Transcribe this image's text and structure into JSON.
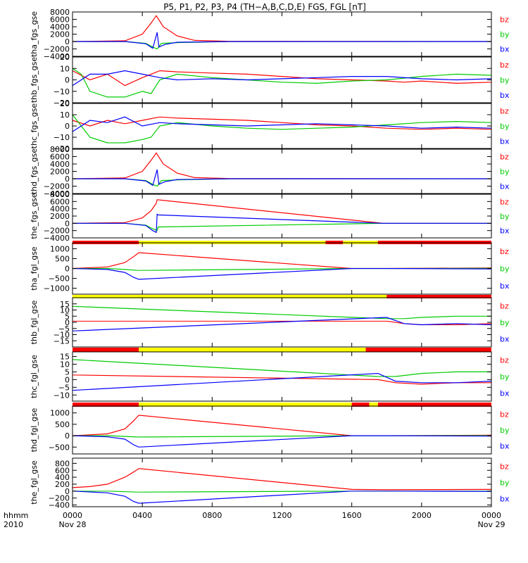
{
  "title": "P5, P1, P2, P3, P4 (TH−A,B,C,D,E) FGS, FGL [nT]",
  "colors": {
    "bx": "#0000ff",
    "by": "#00cc00",
    "bz": "#ff0000",
    "flag_red": "#ff0000",
    "flag_yellow": "#ffff00",
    "text": "#000000"
  },
  "x_axis": {
    "range_hours": [
      0,
      24
    ],
    "ticks": [
      "0000",
      "0400",
      "0800",
      "1200",
      "1600",
      "2000",
      "0000"
    ],
    "tick_hours": [
      0,
      4,
      8,
      12,
      16,
      20,
      24
    ],
    "date_labels": [
      "Nov 28",
      "Nov 29"
    ],
    "corner_labels": [
      "hhmm",
      "2010"
    ]
  },
  "chart_data": [
    {
      "type": "line",
      "ylabel": "tha_fgs_gse",
      "ylim": [
        -4000,
        8000
      ],
      "tick_values": [
        8000,
        6000,
        4000,
        2000,
        0,
        -2000,
        -4000
      ],
      "tick_labels": [
        "8000",
        "6000",
        "4000",
        "2000",
        "0",
        "−2000",
        "−4000"
      ],
      "series": [
        {
          "name": "bz",
          "color": "#ff0000",
          "x": [
            0,
            3,
            4,
            4.5,
            4.8,
            5.2,
            6,
            7,
            9,
            24
          ],
          "y": [
            0,
            200,
            2000,
            5000,
            7000,
            4000,
            1500,
            300,
            50,
            0
          ]
        },
        {
          "name": "by",
          "color": "#00cc00",
          "x": [
            0,
            3,
            4.2,
            4.6,
            4.85,
            5.1,
            6,
            9,
            24
          ],
          "y": [
            0,
            0,
            -500,
            -1500,
            -2000,
            -500,
            -300,
            0,
            0
          ]
        },
        {
          "name": "bx",
          "color": "#0000ff",
          "x": [
            0,
            3,
            4.2,
            4.6,
            4.85,
            4.95,
            5.3,
            6,
            9,
            24
          ],
          "y": [
            0,
            0,
            -600,
            -1800,
            2500,
            -1500,
            -800,
            -200,
            0,
            0
          ]
        }
      ]
    },
    {
      "type": "line",
      "ylabel": "thb_fgs_gse",
      "ylim": [
        -20,
        20
      ],
      "tick_values": [
        20,
        10,
        0,
        -10,
        -20
      ],
      "tick_labels": [
        "20",
        "10",
        "0",
        "−10",
        "−20"
      ],
      "series": [
        {
          "name": "bz",
          "color": "#ff0000",
          "x": [
            0,
            1,
            2,
            3,
            4,
            4.5,
            5,
            6,
            8,
            10,
            12,
            14,
            16,
            18,
            19,
            20,
            22,
            24
          ],
          "y": [
            8,
            0,
            5,
            -5,
            2,
            5,
            8,
            7,
            6,
            5,
            3,
            1,
            0,
            -1,
            -2,
            -1,
            -3,
            -2
          ]
        },
        {
          "name": "by",
          "color": "#00cc00",
          "x": [
            0,
            0.5,
            1,
            2,
            3,
            4,
            4.5,
            5,
            6,
            8,
            10,
            12,
            14,
            16,
            18,
            20,
            22,
            24
          ],
          "y": [
            10,
            5,
            -10,
            -15,
            -15,
            -10,
            -12,
            0,
            5,
            2,
            0,
            -2,
            -3,
            -1,
            0,
            3,
            5,
            4
          ]
        },
        {
          "name": "bx",
          "color": "#0000ff",
          "x": [
            0,
            1,
            2,
            3,
            4,
            5,
            6,
            8,
            10,
            12,
            14,
            16,
            18,
            20,
            22,
            24
          ],
          "y": [
            -5,
            5,
            5,
            8,
            5,
            2,
            0,
            1,
            0,
            1,
            2,
            3,
            3,
            1,
            0,
            1
          ]
        }
      ]
    },
    {
      "type": "line",
      "ylabel": "thc_fgs_gse",
      "ylim": [
        -20,
        20
      ],
      "tick_values": [
        20,
        10,
        0,
        -10,
        -20
      ],
      "tick_labels": [
        "20",
        "10",
        "0",
        "−10",
        "−20"
      ],
      "series": [
        {
          "name": "bz",
          "color": "#ff0000",
          "x": [
            0,
            1,
            2,
            3,
            4,
            5,
            6,
            8,
            10,
            12,
            14,
            16,
            18,
            20,
            22,
            24
          ],
          "y": [
            5,
            0,
            5,
            2,
            5,
            8,
            7,
            6,
            5,
            3,
            1,
            0,
            -2,
            -3,
            -2,
            -3
          ]
        },
        {
          "name": "by",
          "color": "#00cc00",
          "x": [
            0,
            0.5,
            1,
            2,
            3,
            4,
            4.5,
            5,
            6,
            8,
            10,
            12,
            14,
            16,
            18,
            20,
            22,
            24
          ],
          "y": [
            10,
            0,
            -10,
            -15,
            -15,
            -12,
            -10,
            0,
            3,
            0,
            -2,
            -3,
            -2,
            -1,
            1,
            3,
            4,
            3
          ]
        },
        {
          "name": "bx",
          "color": "#0000ff",
          "x": [
            0,
            1,
            2,
            3,
            4,
            5,
            6,
            8,
            10,
            12,
            14,
            16,
            18,
            20,
            22,
            24
          ],
          "y": [
            -5,
            5,
            3,
            8,
            0,
            3,
            2,
            1,
            0,
            1,
            2,
            1,
            0,
            -2,
            -1,
            -2
          ]
        }
      ]
    },
    {
      "type": "line",
      "ylabel": "thd_fgs_gse",
      "ylim": [
        -4000,
        8000
      ],
      "tick_values": [
        8000,
        6000,
        4000,
        2000,
        0,
        -2000,
        -4000
      ],
      "tick_labels": [
        "8000",
        "6000",
        "4000",
        "2000",
        "0",
        "−2000",
        "−4000"
      ],
      "series": [
        {
          "name": "bz",
          "color": "#ff0000",
          "x": [
            0,
            3,
            4,
            4.5,
            4.8,
            5.2,
            6,
            7,
            9,
            24
          ],
          "y": [
            0,
            200,
            2000,
            5000,
            7000,
            4000,
            1500,
            300,
            50,
            0
          ]
        },
        {
          "name": "by",
          "color": "#00cc00",
          "x": [
            0,
            3,
            4.2,
            4.6,
            4.85,
            5.1,
            6,
            9,
            24
          ],
          "y": [
            0,
            0,
            -500,
            -1500,
            -2000,
            -500,
            -300,
            0,
            0
          ]
        },
        {
          "name": "bx",
          "color": "#0000ff",
          "x": [
            0,
            3,
            4.2,
            4.6,
            4.85,
            4.95,
            5.3,
            6,
            9,
            24
          ],
          "y": [
            0,
            0,
            -600,
            -1800,
            2500,
            -1500,
            -800,
            -200,
            0,
            0
          ]
        }
      ]
    },
    {
      "type": "line",
      "ylabel": "the_fgs_gse",
      "ylim": [
        -4000,
        8000
      ],
      "tick_values": [
        8000,
        6000,
        4000,
        2000,
        0,
        -2000,
        -4000
      ],
      "tick_labels": [
        "8000",
        "6000",
        "4000",
        "2000",
        "0",
        "−2000",
        "−4000"
      ],
      "series": [
        {
          "name": "bz",
          "color": "#ff0000",
          "x": [
            0,
            3,
            4,
            4.5,
            4.8,
            4.85,
            17.8,
            24
          ],
          "y": [
            0,
            200,
            1500,
            3500,
            5500,
            6500,
            0,
            0
          ]
        },
        {
          "name": "by",
          "color": "#00cc00",
          "x": [
            0,
            3,
            4.2,
            4.6,
            4.85,
            4.9,
            17.8,
            24
          ],
          "y": [
            0,
            0,
            -500,
            -1500,
            -2000,
            -1000,
            0,
            0
          ]
        },
        {
          "name": "bx",
          "color": "#0000ff",
          "x": [
            0,
            3,
            4.2,
            4.6,
            4.8,
            4.85,
            4.9,
            17.8,
            24
          ],
          "y": [
            0,
            0,
            -600,
            -2000,
            -2500,
            2500,
            2300,
            0,
            0
          ]
        }
      ]
    },
    {
      "type": "line",
      "ylabel": "tha_fgl_gse",
      "ylim": [
        -1300,
        1300
      ],
      "tick_values": [
        1000,
        500,
        0,
        -500,
        -1000
      ],
      "tick_labels": [
        "1000",
        "500",
        "0",
        "−500",
        "−1000"
      ],
      "series": [
        {
          "name": "bz",
          "color": "#ff0000",
          "x": [
            0,
            2,
            3,
            3.5,
            3.8,
            16,
            18,
            24
          ],
          "y": [
            0,
            80,
            300,
            600,
            800,
            0,
            0,
            30
          ]
        },
        {
          "name": "by",
          "color": "#00cc00",
          "x": [
            0,
            2,
            3,
            3.8,
            16,
            18,
            24
          ],
          "y": [
            0,
            0,
            -50,
            -100,
            0,
            0,
            10
          ]
        },
        {
          "name": "bx",
          "color": "#0000ff",
          "x": [
            0,
            2,
            3,
            3.5,
            3.8,
            16,
            18,
            24
          ],
          "y": [
            0,
            -50,
            -200,
            -450,
            -550,
            0,
            0,
            -20
          ]
        }
      ],
      "flags": [
        [
          0,
          3.8,
          "red"
        ],
        [
          3.8,
          14.5,
          "yellow"
        ],
        [
          14.5,
          15.5,
          "red"
        ],
        [
          15.5,
          17.5,
          "yellow"
        ],
        [
          17.5,
          24,
          "red"
        ]
      ]
    },
    {
      "type": "line",
      "ylabel": "thb_fgl_gse",
      "ylim": [
        -20,
        20
      ],
      "tick_values": [
        15,
        10,
        5,
        0,
        -5,
        -10,
        -15
      ],
      "tick_labels": [
        "15",
        "10",
        "5",
        "0",
        "−5",
        "−10",
        "−15"
      ],
      "series": [
        {
          "name": "bz",
          "color": "#ff0000",
          "x": [
            0,
            18,
            19,
            20,
            22,
            24
          ],
          "y": [
            1,
            1,
            -1,
            -2,
            -2,
            -1
          ]
        },
        {
          "name": "by",
          "color": "#00cc00",
          "x": [
            0,
            18,
            19,
            20,
            22,
            24
          ],
          "y": [
            13,
            3,
            3,
            4,
            5,
            5
          ]
        },
        {
          "name": "bx",
          "color": "#0000ff",
          "x": [
            0,
            18,
            19,
            20,
            22,
            24
          ],
          "y": [
            -7,
            4,
            -1,
            -2,
            -1,
            -2
          ]
        }
      ],
      "flags": [
        [
          0,
          18,
          "yellow"
        ],
        [
          18,
          24,
          "red"
        ]
      ]
    },
    {
      "type": "line",
      "ylabel": "thc_fgl_gse",
      "ylim": [
        -14,
        18
      ],
      "tick_values": [
        15,
        10,
        5,
        0,
        -5,
        -10
      ],
      "tick_labels": [
        "15",
        "10",
        "5",
        "0",
        "−5",
        "−10"
      ],
      "series": [
        {
          "name": "bz",
          "color": "#ff0000",
          "x": [
            0,
            17.5,
            18.5,
            20,
            22,
            24
          ],
          "y": [
            3,
            0,
            -2,
            -3,
            -2,
            -2
          ]
        },
        {
          "name": "by",
          "color": "#00cc00",
          "x": [
            0,
            17.5,
            18.5,
            20,
            22,
            24
          ],
          "y": [
            13,
            2,
            2,
            4,
            5,
            5
          ]
        },
        {
          "name": "bx",
          "color": "#0000ff",
          "x": [
            0,
            17.5,
            18.5,
            20,
            22,
            24
          ],
          "y": [
            -7,
            4,
            -1,
            -2,
            -2,
            -1
          ]
        }
      ],
      "flags": [
        [
          0,
          3.8,
          "red"
        ],
        [
          3.8,
          16.8,
          "yellow"
        ],
        [
          16.8,
          24,
          "red"
        ]
      ]
    },
    {
      "type": "line",
      "ylabel": "thd_fgl_gse",
      "ylim": [
        -800,
        1300
      ],
      "tick_values": [
        1000,
        500,
        0,
        -500
      ],
      "tick_labels": [
        "1000",
        "500",
        "0",
        "−500"
      ],
      "series": [
        {
          "name": "bz",
          "color": "#ff0000",
          "x": [
            0,
            2,
            3,
            3.5,
            3.8,
            16,
            18,
            24
          ],
          "y": [
            0,
            80,
            300,
            650,
            900,
            0,
            0,
            20
          ]
        },
        {
          "name": "by",
          "color": "#00cc00",
          "x": [
            0,
            2,
            3,
            3.8,
            16,
            18,
            24
          ],
          "y": [
            0,
            0,
            -30,
            -60,
            0,
            0,
            10
          ]
        },
        {
          "name": "bx",
          "color": "#0000ff",
          "x": [
            0,
            2,
            3,
            3.5,
            3.8,
            16,
            18,
            24
          ],
          "y": [
            0,
            -50,
            -150,
            -400,
            -500,
            0,
            0,
            -20
          ]
        }
      ],
      "flags": [
        [
          0,
          3.8,
          "red"
        ],
        [
          3.8,
          16,
          "yellow"
        ],
        [
          16,
          17,
          "red"
        ],
        [
          17,
          17.5,
          "yellow"
        ],
        [
          17.5,
          24,
          "red"
        ]
      ]
    },
    {
      "type": "line",
      "ylabel": "the_fgl_gse",
      "ylim": [
        -450,
        950
      ],
      "tick_values": [
        800,
        600,
        400,
        200,
        0,
        -200,
        -400
      ],
      "tick_labels": [
        "800",
        "600",
        "400",
        "200",
        "0",
        "−200",
        "−400"
      ],
      "series": [
        {
          "name": "bz",
          "color": "#ff0000",
          "x": [
            0,
            1,
            2,
            3,
            3.5,
            3.8,
            16,
            18,
            24
          ],
          "y": [
            100,
            130,
            200,
            400,
            550,
            650,
            50,
            40,
            50
          ]
        },
        {
          "name": "by",
          "color": "#00cc00",
          "x": [
            0,
            2,
            3.8,
            16,
            24
          ],
          "y": [
            0,
            0,
            -30,
            0,
            0
          ]
        },
        {
          "name": "bx",
          "color": "#0000ff",
          "x": [
            0,
            2,
            3,
            3.5,
            3.8,
            16,
            18,
            24
          ],
          "y": [
            0,
            -50,
            -150,
            -300,
            -350,
            0,
            0,
            -10
          ]
        }
      ]
    }
  ]
}
